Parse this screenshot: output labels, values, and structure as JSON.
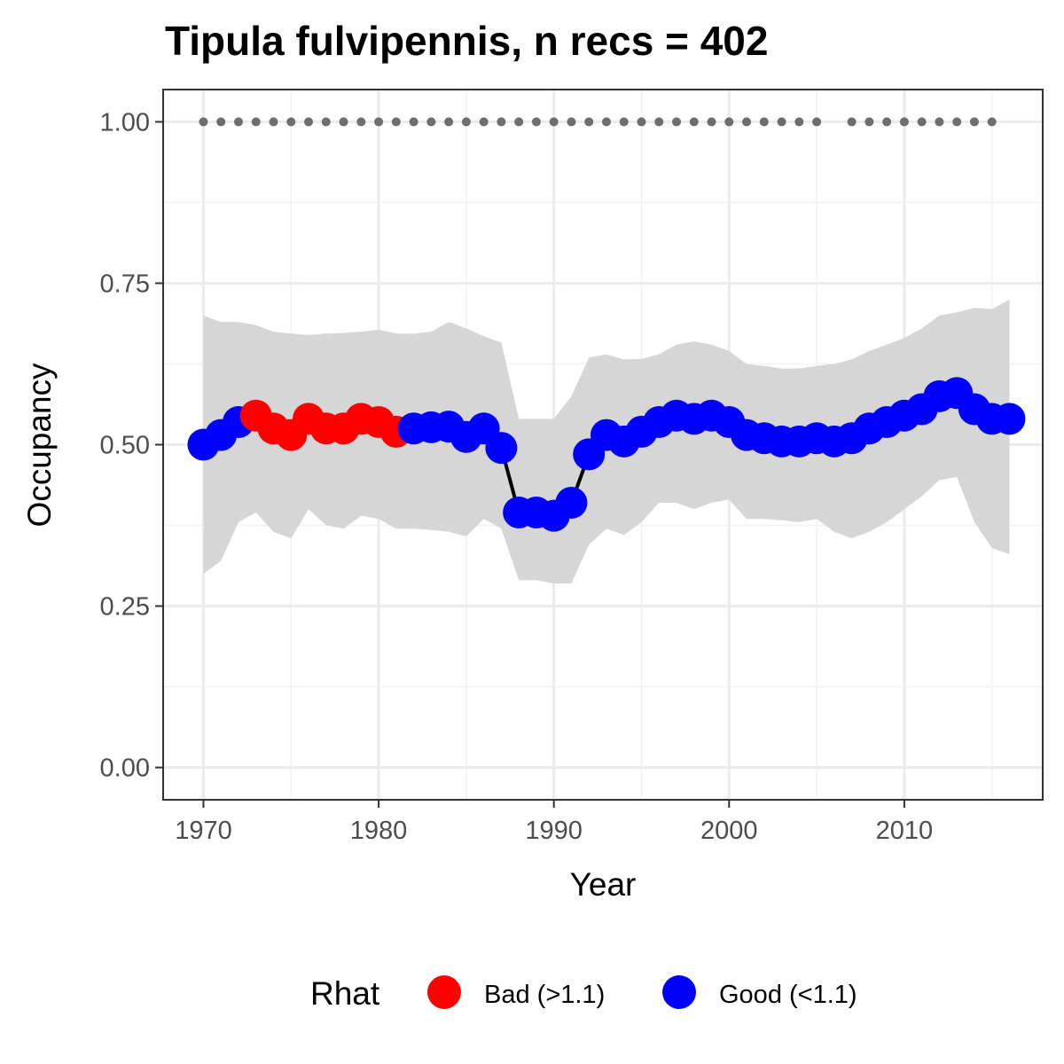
{
  "chart_data": {
    "type": "line",
    "title": "Tipula fulvipennis, n recs = 402",
    "xlabel": "Year",
    "ylabel": "Occupancy",
    "xlim": [
      1967.7,
      2017.9
    ],
    "ylim": [
      -0.05,
      1.05
    ],
    "xticks": [
      "1970",
      "1980",
      "1990",
      "2000",
      "2010"
    ],
    "xtick_values": [
      1970,
      1980,
      1990,
      2000,
      2010
    ],
    "yticks": [
      "0.00",
      "0.25",
      "0.50",
      "0.75",
      "1.00"
    ],
    "ytick_values": [
      0,
      0.25,
      0.5,
      0.75,
      1.0
    ],
    "grid": true,
    "legend": {
      "title": "Rhat",
      "position": "bottom",
      "items": [
        {
          "label": "Bad (>1.1)",
          "color": "#ff0000"
        },
        {
          "label": "Good (<1.1)",
          "color": "#0000ff"
        }
      ]
    },
    "colors": {
      "bad": "#ff0000",
      "good": "#0000ff",
      "ribbon": "#d6d6d6",
      "line": "#000000",
      "record_dots": "#6e6e6e"
    },
    "series": {
      "x": [
        1970,
        1971,
        1972,
        1973,
        1974,
        1975,
        1976,
        1977,
        1978,
        1979,
        1980,
        1981,
        1982,
        1983,
        1984,
        1985,
        1986,
        1987,
        1988,
        1989,
        1990,
        1991,
        1992,
        1993,
        1994,
        1995,
        1996,
        1997,
        1998,
        1999,
        2000,
        2001,
        2002,
        2003,
        2004,
        2005,
        2006,
        2007,
        2008,
        2009,
        2010,
        2011,
        2012,
        2013,
        2014,
        2015,
        2016
      ],
      "occupancy": [
        0.5,
        0.515,
        0.535,
        0.545,
        0.525,
        0.515,
        0.54,
        0.525,
        0.525,
        0.54,
        0.535,
        0.52,
        0.525,
        0.527,
        0.528,
        0.512,
        0.525,
        0.495,
        0.395,
        0.395,
        0.39,
        0.41,
        0.485,
        0.515,
        0.505,
        0.52,
        0.535,
        0.545,
        0.54,
        0.545,
        0.535,
        0.515,
        0.51,
        0.505,
        0.505,
        0.51,
        0.505,
        0.51,
        0.525,
        0.535,
        0.545,
        0.555,
        0.575,
        0.58,
        0.555,
        0.54,
        0.54
      ],
      "rhat": [
        "Good",
        "Good",
        "Good",
        "Bad",
        "Bad",
        "Bad",
        "Bad",
        "Bad",
        "Bad",
        "Bad",
        "Bad",
        "Bad",
        "Good",
        "Good",
        "Good",
        "Good",
        "Good",
        "Good",
        "Good",
        "Good",
        "Good",
        "Good",
        "Good",
        "Good",
        "Good",
        "Good",
        "Good",
        "Good",
        "Good",
        "Good",
        "Good",
        "Good",
        "Good",
        "Good",
        "Good",
        "Good",
        "Good",
        "Good",
        "Good",
        "Good",
        "Good",
        "Good",
        "Good",
        "Good",
        "Good",
        "Good",
        "Good"
      ],
      "lower": [
        0.3,
        0.32,
        0.38,
        0.395,
        0.365,
        0.355,
        0.4,
        0.375,
        0.37,
        0.39,
        0.385,
        0.37,
        0.37,
        0.368,
        0.365,
        0.358,
        0.385,
        0.37,
        0.29,
        0.29,
        0.285,
        0.285,
        0.345,
        0.37,
        0.36,
        0.38,
        0.41,
        0.41,
        0.4,
        0.41,
        0.415,
        0.385,
        0.385,
        0.383,
        0.38,
        0.385,
        0.365,
        0.355,
        0.365,
        0.38,
        0.4,
        0.42,
        0.445,
        0.45,
        0.38,
        0.34,
        0.33
      ],
      "upper": [
        0.7,
        0.69,
        0.69,
        0.685,
        0.675,
        0.672,
        0.67,
        0.672,
        0.673,
        0.675,
        0.678,
        0.672,
        0.672,
        0.675,
        0.69,
        0.68,
        0.668,
        0.658,
        0.54,
        0.54,
        0.54,
        0.575,
        0.635,
        0.64,
        0.632,
        0.633,
        0.64,
        0.655,
        0.66,
        0.655,
        0.645,
        0.625,
        0.622,
        0.618,
        0.618,
        0.622,
        0.625,
        0.632,
        0.645,
        0.655,
        0.665,
        0.68,
        0.7,
        0.705,
        0.712,
        0.71,
        0.725
      ]
    },
    "records": {
      "y": 1.0,
      "years": [
        1970,
        1971,
        1972,
        1973,
        1974,
        1975,
        1976,
        1977,
        1978,
        1979,
        1980,
        1981,
        1982,
        1983,
        1984,
        1985,
        1986,
        1987,
        1988,
        1989,
        1990,
        1991,
        1992,
        1993,
        1994,
        1995,
        1996,
        1997,
        1998,
        1999,
        2000,
        2001,
        2002,
        2003,
        2004,
        2005,
        2007,
        2008,
        2009,
        2010,
        2011,
        2012,
        2013,
        2014,
        2015
      ]
    }
  }
}
